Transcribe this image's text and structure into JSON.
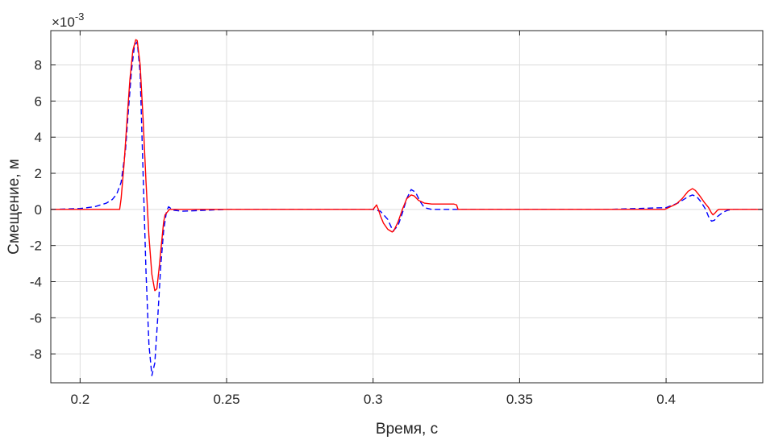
{
  "chart_data": {
    "type": "line",
    "xlabel": "Время, с",
    "ylabel": "Смещение, м",
    "exponent_label": "×10",
    "exponent_power": "-3",
    "xlim": [
      0.19,
      0.433
    ],
    "ylim": [
      -9.6,
      9.9
    ],
    "grid": true,
    "xticks": [
      0.2,
      0.25,
      0.3,
      0.35,
      0.4
    ],
    "xtick_labels": [
      "0.2",
      "0.25",
      "0.3",
      "0.35",
      "0.4"
    ],
    "yticks": [
      -8,
      -6,
      -4,
      -2,
      0,
      2,
      4,
      6,
      8
    ],
    "ytick_labels": [
      "-8",
      "-6",
      "-4",
      "-2",
      "0",
      "2",
      "4",
      "6",
      "8"
    ],
    "series": [
      {
        "color": "#ff0000",
        "style": "solid",
        "x": [
          0.19,
          0.205,
          0.212,
          0.2135,
          0.214,
          0.215,
          0.216,
          0.217,
          0.218,
          0.219,
          0.2195,
          0.2205,
          0.2215,
          0.2225,
          0.2235,
          0.2245,
          0.2255,
          0.2262,
          0.227,
          0.2285,
          0.229,
          0.2305,
          0.2315,
          0.235,
          0.3,
          0.3012,
          0.3018,
          0.3025,
          0.3035,
          0.305,
          0.3065,
          0.307,
          0.3085,
          0.31,
          0.3115,
          0.313,
          0.314,
          0.3155,
          0.3175,
          0.32,
          0.3225,
          0.325,
          0.3275,
          0.3285,
          0.329,
          0.34,
          0.38,
          0.3995,
          0.4035,
          0.4055,
          0.4075,
          0.409,
          0.41,
          0.4115,
          0.413,
          0.4145,
          0.4155,
          0.416,
          0.4167,
          0.4175,
          0.418,
          0.433
        ],
        "y": [
          0,
          0,
          0,
          0,
          0.6,
          2.5,
          4.9,
          7.2,
          8.8,
          9.4,
          9.35,
          8.0,
          5.0,
          1.5,
          -1.5,
          -3.6,
          -4.5,
          -4.4,
          -3.2,
          -0.7,
          -0.3,
          0,
          0,
          0,
          0,
          0.25,
          0,
          -0.35,
          -0.75,
          -1.1,
          -1.25,
          -1.2,
          -0.7,
          0,
          0.6,
          0.8,
          0.75,
          0.5,
          0.35,
          0.3,
          0.3,
          0.3,
          0.3,
          0.25,
          0,
          0,
          0,
          0,
          0.3,
          0.6,
          1.0,
          1.15,
          1.05,
          0.75,
          0.4,
          0.1,
          -0.2,
          -0.3,
          -0.2,
          -0.05,
          0,
          0
        ]
      },
      {
        "color": "#0000ff",
        "style": "dashed",
        "x": [
          0.19,
          0.2,
          0.205,
          0.209,
          0.211,
          0.2125,
          0.214,
          0.2155,
          0.2165,
          0.2175,
          0.2185,
          0.2195,
          0.2205,
          0.2215,
          0.2225,
          0.2235,
          0.2245,
          0.2255,
          0.2265,
          0.2275,
          0.2285,
          0.2295,
          0.2302,
          0.231,
          0.232,
          0.235,
          0.25,
          0.3,
          0.3025,
          0.305,
          0.3068,
          0.3085,
          0.31,
          0.3115,
          0.313,
          0.3145,
          0.316,
          0.3175,
          0.32,
          0.33,
          0.38,
          0.4,
          0.404,
          0.406,
          0.4075,
          0.409,
          0.4105,
          0.412,
          0.4135,
          0.4145,
          0.4155,
          0.4165,
          0.4175,
          0.4195,
          0.421,
          0.423,
          0.433
        ],
        "y": [
          0,
          0.05,
          0.15,
          0.35,
          0.55,
          0.85,
          1.5,
          3.3,
          5.5,
          7.6,
          9.0,
          9.3,
          7.5,
          2.0,
          -3.5,
          -7.5,
          -9.2,
          -8.5,
          -6.0,
          -3.2,
          -1.2,
          -0.1,
          0.15,
          0.05,
          -0.05,
          -0.1,
          0,
          0,
          -0.1,
          -0.55,
          -1.2,
          -0.9,
          -0.2,
          0.6,
          1.1,
          0.95,
          0.45,
          0.1,
          0,
          0,
          0,
          0.1,
          0.35,
          0.55,
          0.7,
          0.8,
          0.7,
          0.4,
          0,
          -0.4,
          -0.65,
          -0.6,
          -0.4,
          -0.15,
          -0.05,
          0,
          0
        ]
      }
    ]
  }
}
